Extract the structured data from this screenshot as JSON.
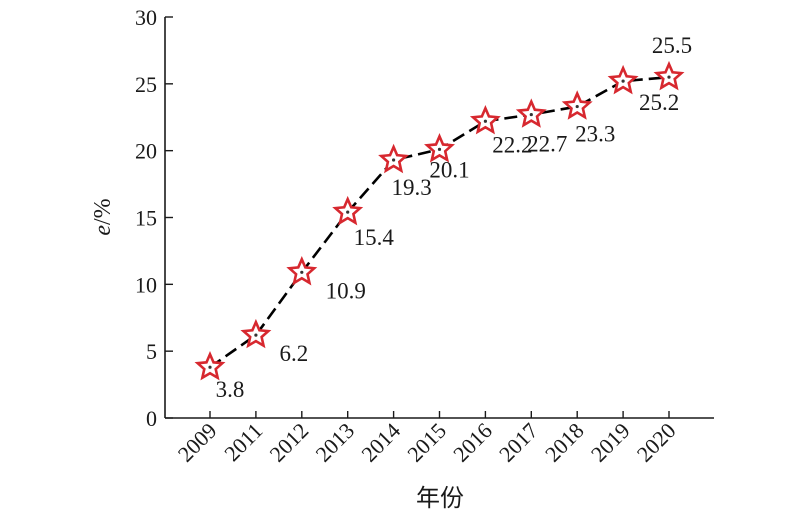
{
  "chart_data": {
    "type": "line",
    "title": "",
    "xlabel": "年份",
    "ylabel_main": "e",
    "ylabel_unit": "/%",
    "categories": [
      "2009",
      "2011",
      "2012",
      "2013",
      "2014",
      "2015",
      "2016",
      "2017",
      "2018",
      "2019",
      "2020"
    ],
    "series": [
      {
        "values": [
          3.8,
          6.2,
          10.9,
          15.4,
          19.3,
          20.1,
          22.2,
          22.7,
          23.3,
          25.2,
          25.5
        ]
      }
    ],
    "data_labels": [
      "3.8",
      "6.2",
      "10.9",
      "15.4",
      "19.3",
      "20.1",
      "22.2",
      "22.7",
      "23.3",
      "25.2",
      "25.5"
    ],
    "ylim": [
      0,
      30
    ],
    "yticks": [
      "0",
      "5",
      "10",
      "15",
      "20",
      "25",
      "30"
    ],
    "line_style": "dashed",
    "marker": "star",
    "colors": {
      "line": "#000000",
      "marker": "#d7282f",
      "axis": "#1a1a1a"
    },
    "grid": false,
    "legend": "none"
  }
}
